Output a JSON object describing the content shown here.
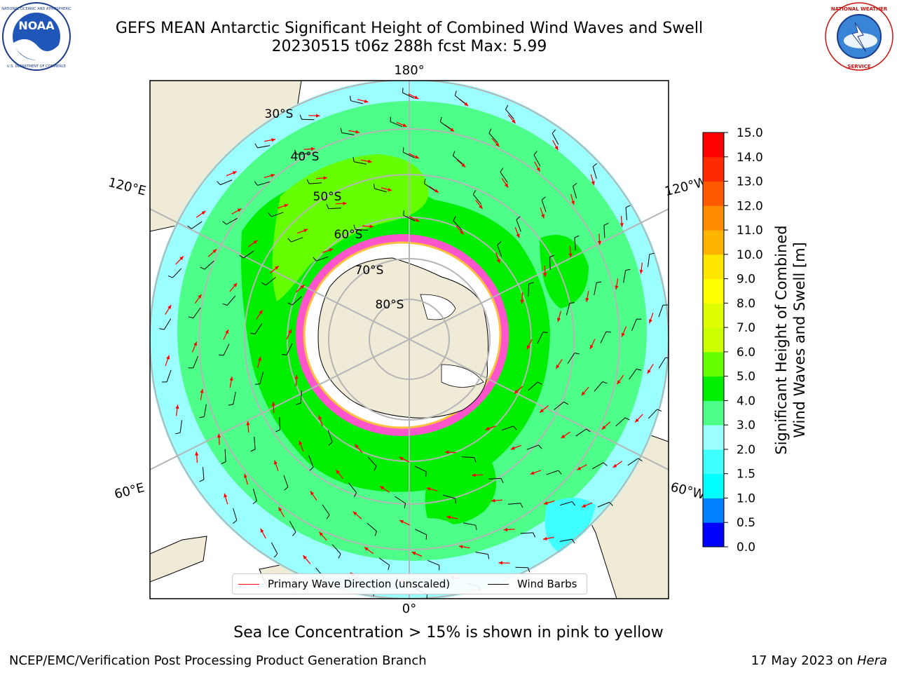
{
  "title": {
    "line1": "GEFS MEAN Antarctic Significant Height of Combined Wind Waves and Swell",
    "line2": "20230515 t06z 288h fcst   Max: 5.99"
  },
  "logos": {
    "left": {
      "name": "noaa-logo",
      "text": "NOAA",
      "ring_text": "NATIONAL OCEANIC AND ATMOSPHERIC ADMINISTRATION · U.S. DEPARTMENT OF COMMERCE"
    },
    "right": {
      "name": "nws-logo",
      "ring_text": "NATIONAL WEATHER SERVICE"
    }
  },
  "map": {
    "projection": "south-polar-stereographic",
    "longitude_labels": [
      "180°",
      "120°E",
      "120°W",
      "60°E",
      "60°W",
      "0°"
    ],
    "latitude_labels": [
      "30°S",
      "40°S",
      "50°S",
      "60°S",
      "70°S",
      "80°S"
    ],
    "colors": {
      "land": "#efebd7",
      "frame": "#000000",
      "grid": "#b5b5b5",
      "wave_arrow": "#ff0000",
      "wind_barb": "#000000"
    }
  },
  "legend": {
    "items": [
      {
        "label": "Primary Wave Direction (unscaled)",
        "color": "#ff0000"
      },
      {
        "label": "Wind Barbs",
        "color": "#000000"
      }
    ]
  },
  "colorbar": {
    "label_line1": "Significant Height of Combined",
    "label_line2": "Wind Waves and Swell [m]",
    "ticks": [
      "0.0",
      "0.5",
      "1.0",
      "1.5",
      "2.0",
      "3.0",
      "4.0",
      "5.0",
      "6.0",
      "7.0",
      "8.0",
      "9.0",
      "10.0",
      "11.0",
      "12.0",
      "13.0",
      "14.0",
      "15.0"
    ],
    "colors": [
      "#0000ff",
      "#0080ff",
      "#00ffff",
      "#40ffff",
      "#9bffff",
      "#4dff88",
      "#00ee00",
      "#66ff00",
      "#ccff00",
      "#ddff00",
      "#ffff00",
      "#ffe600",
      "#ffb400",
      "#ff8c00",
      "#ff5a00",
      "#ff2a00",
      "#ff0000"
    ]
  },
  "note": "Sea Ice Concentration > 15% is shown in pink to yellow",
  "footer": {
    "left": "NCEP/EMC/Verification Post Processing Product Generation Branch",
    "date": "17 May 2023 on ",
    "machine": "Hera"
  }
}
